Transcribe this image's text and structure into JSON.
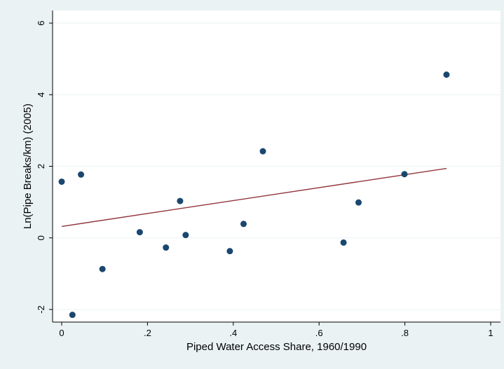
{
  "chart_data": {
    "type": "scatter",
    "title": "",
    "xlabel": "Piped Water Access Share, 1960/1990",
    "ylabel": "Ln(Pipe Breaks/km) (2005)",
    "xlim": [
      0,
      1
    ],
    "ylim": [
      -2,
      6
    ],
    "xticks": [
      0,
      0.2,
      0.4,
      0.6,
      0.8,
      1
    ],
    "xtick_labels": [
      "0",
      ".2",
      ".4",
      ".6",
      ".8",
      "1"
    ],
    "yticks": [
      -2,
      0,
      2,
      4,
      6
    ],
    "ytick_labels": [
      "-2",
      "0",
      "2",
      "4",
      "6"
    ],
    "grid": true,
    "legend": "none",
    "colors": {
      "background": "#eaf2f3",
      "plot_background": "#ffffff",
      "marker": "#1a476f",
      "fit_line": "#90353b"
    },
    "points": [
      {
        "x": 0.0,
        "y": 1.57
      },
      {
        "x": 0.025,
        "y": -2.15
      },
      {
        "x": 0.045,
        "y": 1.77
      },
      {
        "x": 0.095,
        "y": -0.87
      },
      {
        "x": 0.182,
        "y": 0.16
      },
      {
        "x": 0.243,
        "y": -0.27
      },
      {
        "x": 0.276,
        "y": 1.03
      },
      {
        "x": 0.289,
        "y": 0.08
      },
      {
        "x": 0.392,
        "y": -0.37
      },
      {
        "x": 0.424,
        "y": 0.39
      },
      {
        "x": 0.469,
        "y": 2.42
      },
      {
        "x": 0.657,
        "y": -0.13
      },
      {
        "x": 0.692,
        "y": 0.99
      },
      {
        "x": 0.799,
        "y": 1.78
      },
      {
        "x": 0.897,
        "y": 4.56
      }
    ],
    "fit_line": {
      "x": [
        0.0,
        0.897
      ],
      "y": [
        0.32,
        1.94
      ]
    }
  }
}
